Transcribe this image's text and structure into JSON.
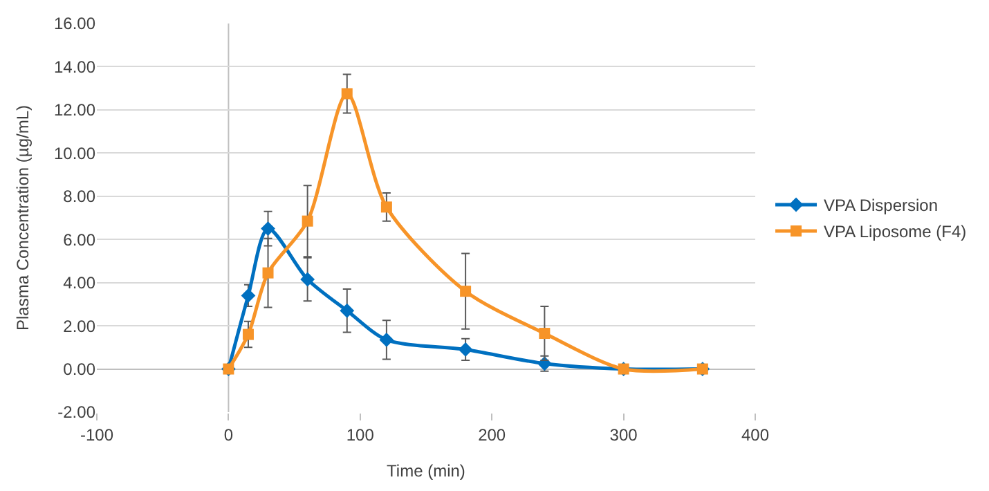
{
  "chart_data": {
    "type": "line",
    "xlabel": "Time (min)",
    "ylabel": "Plasma Concentration (µg/mL)",
    "x": [
      0,
      15,
      30,
      60,
      90,
      120,
      180,
      240,
      300,
      360
    ],
    "series": [
      {
        "name": "VPA Dispersion",
        "color": "#0070c0",
        "marker": "diamond",
        "values": [
          0,
          3.4,
          6.5,
          4.15,
          2.7,
          1.35,
          0.9,
          0.25,
          0,
          0
        ],
        "errors": [
          null,
          0.5,
          0.8,
          1.0,
          1.0,
          0.9,
          0.5,
          0.35,
          null,
          null
        ]
      },
      {
        "name": "VPA Liposome (F4)",
        "color": "#f79428",
        "marker": "square",
        "values": [
          0,
          1.6,
          4.45,
          6.85,
          12.75,
          7.5,
          3.6,
          1.65,
          0,
          0
        ],
        "errors": [
          null,
          0.6,
          1.6,
          1.65,
          0.9,
          0.65,
          1.75,
          1.25,
          null,
          null
        ]
      }
    ],
    "xlim": [
      -100,
      400
    ],
    "xticks": [
      -100,
      0,
      100,
      200,
      300,
      400
    ],
    "ylim": [
      -2,
      16
    ],
    "yticks": [
      {
        "value": -2,
        "label": "-2.00"
      },
      {
        "value": 0,
        "label": "0.00"
      },
      {
        "value": 2,
        "label": "2.00"
      },
      {
        "value": 4,
        "label": "4.00"
      },
      {
        "value": 6,
        "label": "6.00"
      },
      {
        "value": 8,
        "label": "8.00"
      },
      {
        "value": 10,
        "label": "10.00"
      },
      {
        "value": 12,
        "label": "12.00"
      },
      {
        "value": 14,
        "label": "14.00"
      },
      {
        "value": 16,
        "label": "16.00"
      }
    ],
    "ref_lines": [
      {
        "axis": "x",
        "value": 0,
        "color": "#bfbfbf"
      }
    ],
    "grid": "y",
    "legend": "right",
    "line_style": "solid"
  }
}
